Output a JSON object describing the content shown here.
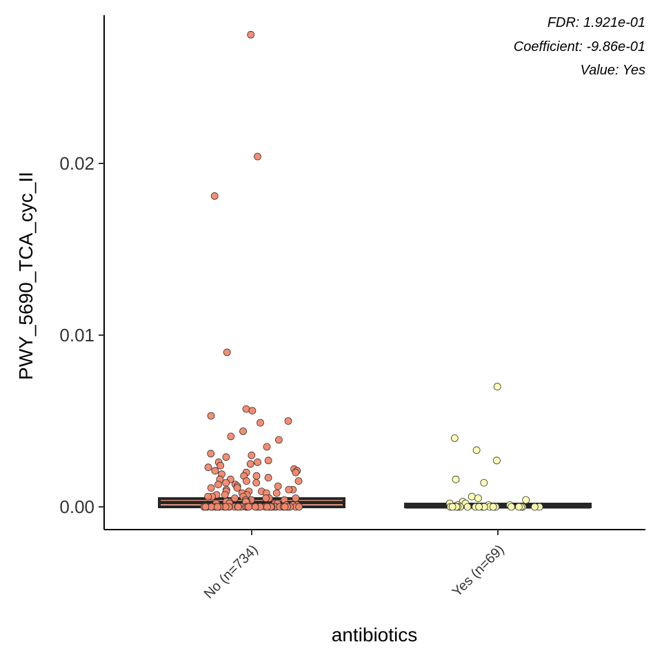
{
  "chart_data": {
    "type": "scatter",
    "subtype": "boxplot-with-jitter",
    "xlabel": "antibiotics",
    "ylabel": "PWY_5690_TCA_cyc_II",
    "ylim": [
      -0.0013,
      0.0285
    ],
    "yticks": [
      0.0,
      0.01,
      0.02
    ],
    "ytick_labels": [
      "0.00",
      "0.01",
      "0.02"
    ],
    "categories": [
      "No (n=734)",
      "Yes (n=69)"
    ],
    "annotations": [
      "FDR: 1.921e-01",
      "Coefficient: -9.86e-01",
      "Value: Yes"
    ],
    "grid": false,
    "legend": "none",
    "colors": {
      "No": "#F4876A",
      "Yes": "#FFFFB3",
      "box_fill_No": "#F8A98E",
      "box_fill_Yes": "#E8E8B8",
      "box_line": "#262626",
      "axis": "#000000"
    },
    "series": [
      {
        "name": "No (n=734)",
        "box": {
          "q1": 0.0,
          "median": 0.00025,
          "q3": 0.00048
        },
        "outliers": [
          0.0275,
          0.0204,
          0.0181,
          0.009,
          0.0057,
          0.0056,
          0.0053,
          0.005,
          0.0049,
          0.0044,
          0.0041,
          0.0039,
          0.0035,
          0.0031,
          0.003,
          0.0029,
          0.0027,
          0.0026,
          0.0026,
          0.0025,
          0.0024,
          0.0023,
          0.0022,
          0.0021,
          0.0021,
          0.002,
          0.002,
          0.0019,
          0.0018,
          0.0018,
          0.0017,
          0.0016,
          0.0016,
          0.0015,
          0.0015,
          0.0014,
          0.0014,
          0.0013,
          0.0013,
          0.0012,
          0.0012,
          0.0011,
          0.0011,
          0.001,
          0.001,
          0.001,
          0.0009,
          0.0009,
          0.0009,
          0.0008,
          0.0008,
          0.0008,
          0.0007,
          0.0007,
          0.0007,
          0.0006,
          0.0006,
          0.0006,
          0.0005,
          0.0005,
          0.0005,
          0.0005,
          0.0004,
          0.0004,
          0.0004,
          0.0004,
          0.0003,
          0.0003,
          0.0003,
          0.0003,
          0.0002,
          0.0002,
          0.0002,
          0.0002,
          0.0001,
          0.0001,
          0.0001,
          0.0001,
          0.0,
          0.0,
          0.0,
          0.0,
          0.0,
          0.0,
          0.0,
          0.0,
          0.0,
          0.0,
          0.0,
          0.0,
          0.0,
          0.0,
          0.0,
          0.0,
          0.0,
          0.0,
          0.0,
          0.0,
          0.0,
          0.0,
          0.0,
          0.0,
          0.0,
          0.0,
          0.0,
          0.0,
          0.0,
          0.0,
          0.0,
          0.0,
          0.0,
          0.0,
          0.0,
          0.0,
          0.0,
          0.0,
          0.0,
          0.0,
          0.0,
          0.0
        ]
      },
      {
        "name": "Yes (n=69)",
        "box": {
          "q1": 0.0,
          "median": 0.0,
          "q3": 3e-05
        },
        "outliers": [
          0.007,
          0.004,
          0.0033,
          0.0027,
          0.0016,
          0.0014,
          0.0006,
          0.0005,
          0.0004,
          0.0003,
          0.0002,
          0.0002,
          0.0001,
          0.0001,
          0.0001,
          0.0,
          0.0,
          0.0,
          0.0,
          0.0,
          0.0,
          0.0,
          0.0,
          0.0,
          0.0,
          0.0,
          0.0,
          0.0,
          0.0,
          0.0,
          0.0,
          0.0,
          0.0,
          0.0,
          0.0
        ]
      }
    ]
  }
}
